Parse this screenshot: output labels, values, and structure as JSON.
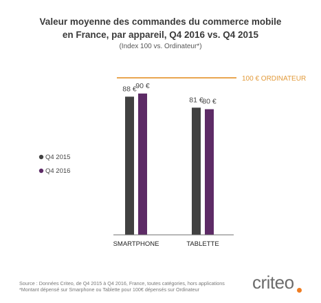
{
  "chart_data": {
    "type": "bar",
    "title_line1": "Valeur moyenne des commandes du commerce mobile",
    "title_line2": "en France, par appareil, Q4 2016 vs. Q4 2015",
    "subtitle": "(Index 100 vs. Ordinateur*)",
    "categories": [
      "SMARTPHONE",
      "TABLETTE"
    ],
    "series": [
      {
        "name": "Q4 2015",
        "values": [
          88,
          81
        ],
        "labels": [
          "88 €",
          "81 €"
        ],
        "color": "#414141"
      },
      {
        "name": "Q4 2016",
        "values": [
          90,
          80
        ],
        "labels": [
          "90 €",
          "80 €"
        ],
        "color": "#5d2b66"
      }
    ],
    "reference_line": {
      "value": 100,
      "label": "100 €  ORDINATEUR",
      "color": "#e9a550"
    },
    "ylim": [
      0,
      100
    ],
    "grid": false,
    "legend_position": "left"
  },
  "footer": {
    "source": "Source : Données Criteo, de Q4 2015 à Q4 2016, France, toutes catégories, hors applications",
    "note": "*Montant dépensé sur Smarphone ou Tablette pour 100€ dépensés sur Ordinateur"
  },
  "logo": {
    "text": "criteo",
    "accent_color": "#ef7d22"
  }
}
